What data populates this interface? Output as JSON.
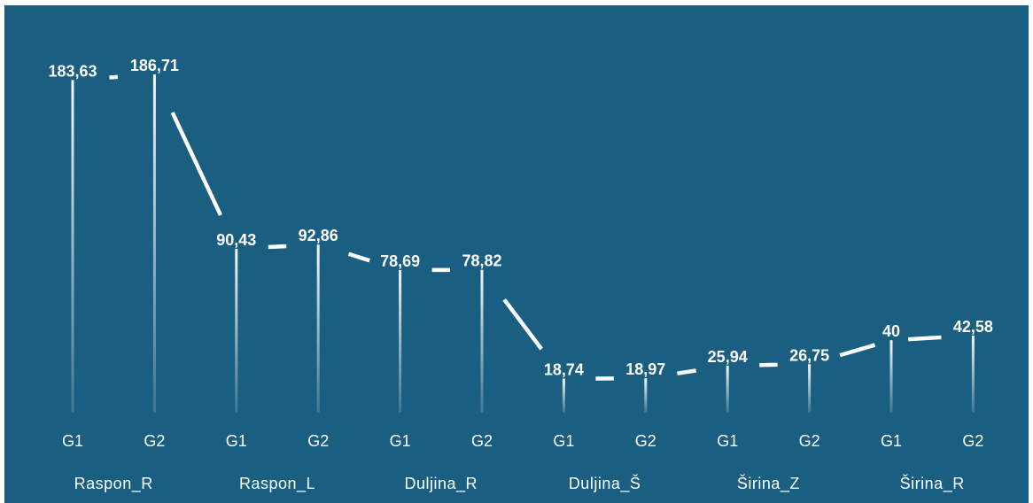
{
  "chart_data": {
    "type": "line",
    "background": "#1a5f82",
    "line_color": "#ffffff",
    "groups": [
      "Raspon_R",
      "Raspon_L",
      "Duljina_R",
      "Duljina_Š",
      "Širina_Z",
      "Širina_R"
    ],
    "x_tick_labels": [
      "G1",
      "G2",
      "G1",
      "G2",
      "G1",
      "G2",
      "G1",
      "G2",
      "G1",
      "G2",
      "G1",
      "G2"
    ],
    "values": [
      183.63,
      186.71,
      90.43,
      92.86,
      78.69,
      78.82,
      18.74,
      18.97,
      25.94,
      26.75,
      40,
      42.58
    ],
    "value_labels": [
      "183,63",
      "186,71",
      "90,43",
      "92,86",
      "78,69",
      "78,82",
      "18,74",
      "18,97",
      "25,94",
      "26,75",
      "40",
      "42,58"
    ]
  }
}
